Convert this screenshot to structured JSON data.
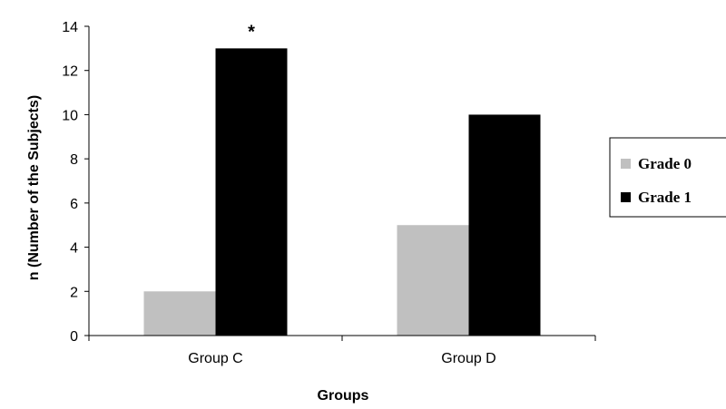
{
  "chart_data": {
    "type": "bar",
    "categories": [
      "Group C",
      "Group D"
    ],
    "series": [
      {
        "name": "Grade 0",
        "values": [
          2,
          5
        ],
        "color": "#c0c0c0"
      },
      {
        "name": "Grade 1",
        "values": [
          13,
          10
        ],
        "color": "#000000"
      }
    ],
    "xlabel": "Groups",
    "ylabel": "n (Number of the Subjects)",
    "ylim": [
      0,
      14
    ],
    "yticks": [
      0,
      2,
      4,
      6,
      8,
      10,
      12,
      14
    ],
    "grid": false,
    "legend_position": "right",
    "annotations": [
      {
        "text": "*",
        "category": "Group C",
        "series": "Grade 1"
      }
    ]
  }
}
